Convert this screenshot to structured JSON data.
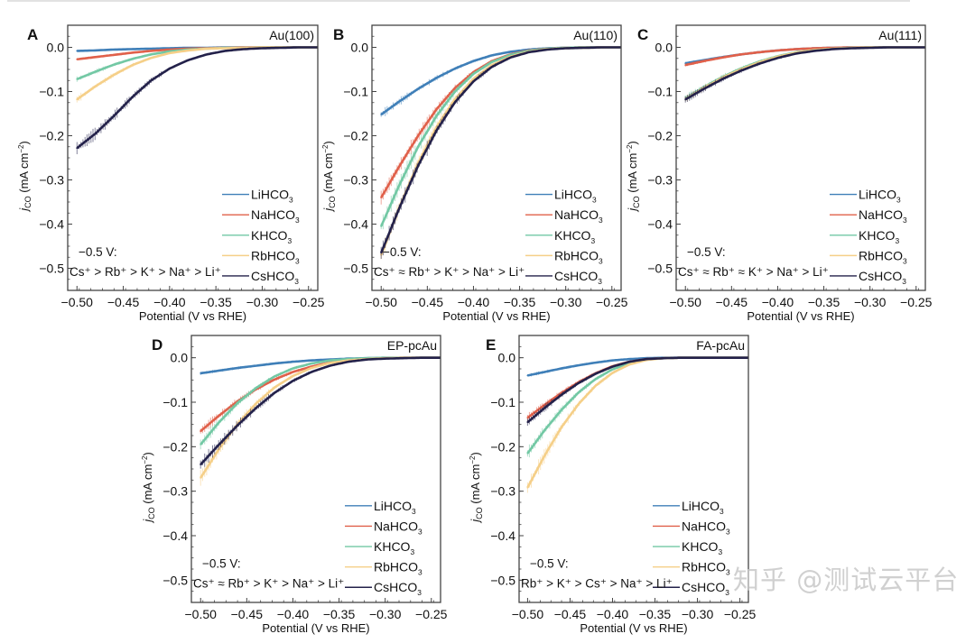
{
  "watermark": "知乎 @测试云平台",
  "colors": {
    "LiHCO3": "#3f7fb8",
    "NaHCO3": "#e0604a",
    "KHCO3": "#72c8a4",
    "RbHCO3": "#f5cf88",
    "CsHCO3": "#23214a"
  },
  "chart_data": [
    {
      "panel": "A",
      "type": "line",
      "title": "Au(100)",
      "xlabel": "Potential (V vs RHE)",
      "ylabel": "j_CO (mA cm^-2)",
      "xlim": [
        -0.51,
        -0.24
      ],
      "ylim": [
        -0.55,
        0.05
      ],
      "xticks": [
        "-0.50",
        "-0.45",
        "-0.40",
        "-0.35",
        "-0.30",
        "-0.25"
      ],
      "yticks": [
        "0.0",
        "-0.1",
        "-0.2",
        "-0.3",
        "-0.4",
        "-0.5"
      ],
      "legend_position": "bottom-right",
      "annotation": [
        "−0.5 V:",
        "Cs⁺ > Rb⁺ > K⁺ > Na⁺ > Li⁺"
      ],
      "x": [
        -0.5,
        -0.48,
        -0.46,
        -0.44,
        -0.42,
        -0.4,
        -0.38,
        -0.36,
        -0.34,
        -0.32,
        -0.3,
        -0.28,
        -0.26,
        -0.24
      ],
      "series": [
        {
          "name": "LiHCO3",
          "values": [
            -0.008,
            -0.007,
            -0.005,
            -0.004,
            -0.003,
            -0.002,
            -0.001,
            -0.001,
            0,
            0,
            0,
            0,
            0,
            0
          ]
        },
        {
          "name": "NaHCO3",
          "values": [
            -0.027,
            -0.022,
            -0.017,
            -0.012,
            -0.008,
            -0.005,
            -0.003,
            -0.002,
            -0.001,
            0,
            0,
            0,
            0,
            0
          ]
        },
        {
          "name": "KHCO3",
          "values": [
            -0.072,
            -0.055,
            -0.039,
            -0.026,
            -0.016,
            -0.009,
            -0.005,
            -0.003,
            -0.001,
            -0.001,
            0,
            0,
            0,
            0
          ]
        },
        {
          "name": "RbHCO3",
          "values": [
            -0.118,
            -0.088,
            -0.062,
            -0.04,
            -0.024,
            -0.013,
            -0.007,
            -0.003,
            -0.002,
            -0.001,
            0,
            0,
            0,
            0
          ]
        },
        {
          "name": "CsHCO3",
          "values": [
            -0.228,
            -0.195,
            -0.155,
            -0.112,
            -0.075,
            -0.048,
            -0.029,
            -0.016,
            -0.008,
            -0.004,
            -0.002,
            -0.001,
            0,
            0
          ]
        }
      ]
    },
    {
      "panel": "B",
      "type": "line",
      "title": "Au(110)",
      "xlabel": "Potential (V vs RHE)",
      "ylabel": "j_CO (mA cm^-2)",
      "xlim": [
        -0.51,
        -0.24
      ],
      "ylim": [
        -0.55,
        0.05
      ],
      "xticks": [
        "-0.50",
        "-0.45",
        "-0.40",
        "-0.35",
        "-0.30",
        "-0.25"
      ],
      "yticks": [
        "0.0",
        "-0.1",
        "-0.2",
        "-0.3",
        "-0.4",
        "-0.5"
      ],
      "legend_position": "bottom-right",
      "annotation": [
        "−0.5 V:",
        "Cs⁺ ≈ Rb⁺ > K⁺ > Na⁺ > Li⁺"
      ],
      "x": [
        -0.5,
        -0.48,
        -0.46,
        -0.44,
        -0.42,
        -0.4,
        -0.38,
        -0.36,
        -0.34,
        -0.32,
        -0.3,
        -0.28,
        -0.26,
        -0.24
      ],
      "series": [
        {
          "name": "LiHCO3",
          "values": [
            -0.152,
            -0.122,
            -0.094,
            -0.069,
            -0.048,
            -0.031,
            -0.018,
            -0.01,
            -0.005,
            -0.002,
            -0.001,
            0,
            0,
            0
          ]
        },
        {
          "name": "NaHCO3",
          "values": [
            -0.34,
            -0.268,
            -0.2,
            -0.14,
            -0.092,
            -0.056,
            -0.031,
            -0.016,
            -0.007,
            -0.003,
            -0.001,
            0,
            0,
            0
          ]
        },
        {
          "name": "KHCO3",
          "values": [
            -0.405,
            -0.31,
            -0.225,
            -0.155,
            -0.1,
            -0.06,
            -0.033,
            -0.017,
            -0.008,
            -0.003,
            -0.001,
            0,
            0,
            0
          ]
        },
        {
          "name": "RbHCO3",
          "values": [
            -0.47,
            -0.36,
            -0.262,
            -0.18,
            -0.117,
            -0.071,
            -0.04,
            -0.021,
            -0.01,
            -0.004,
            -0.002,
            -0.001,
            0,
            0
          ]
        },
        {
          "name": "CsHCO3",
          "values": [
            -0.465,
            -0.362,
            -0.268,
            -0.188,
            -0.124,
            -0.077,
            -0.044,
            -0.023,
            -0.011,
            -0.005,
            -0.002,
            -0.001,
            0,
            0
          ]
        }
      ]
    },
    {
      "panel": "C",
      "type": "line",
      "title": "Au(111)",
      "xlabel": "Potential (V vs RHE)",
      "ylabel": "j_CO (mA cm^-2)",
      "xlim": [
        -0.51,
        -0.24
      ],
      "ylim": [
        -0.55,
        0.05
      ],
      "xticks": [
        "-0.50",
        "-0.45",
        "-0.40",
        "-0.35",
        "-0.30",
        "-0.25"
      ],
      "yticks": [
        "0.0",
        "-0.1",
        "-0.2",
        "-0.3",
        "-0.4",
        "-0.5"
      ],
      "legend_position": "bottom-right",
      "annotation": [
        "−0.5 V:",
        "Cs⁺ ≈ Rb⁺ ≈ K⁺ > Na⁺ > Li⁺"
      ],
      "x": [
        -0.5,
        -0.48,
        -0.46,
        -0.44,
        -0.42,
        -0.4,
        -0.38,
        -0.36,
        -0.34,
        -0.32,
        -0.3,
        -0.28,
        -0.26,
        -0.24
      ],
      "series": [
        {
          "name": "LiHCO3",
          "values": [
            -0.036,
            -0.029,
            -0.022,
            -0.016,
            -0.011,
            -0.007,
            -0.004,
            -0.002,
            -0.001,
            0,
            0,
            0,
            0,
            0
          ]
        },
        {
          "name": "NaHCO3",
          "values": [
            -0.04,
            -0.031,
            -0.023,
            -0.016,
            -0.011,
            -0.007,
            -0.004,
            -0.002,
            -0.001,
            0,
            0,
            0,
            0,
            0
          ]
        },
        {
          "name": "KHCO3",
          "values": [
            -0.115,
            -0.09,
            -0.067,
            -0.048,
            -0.032,
            -0.02,
            -0.011,
            -0.006,
            -0.003,
            -0.001,
            0,
            0,
            0,
            0
          ]
        },
        {
          "name": "RbHCO3",
          "values": [
            -0.117,
            -0.092,
            -0.069,
            -0.05,
            -0.034,
            -0.021,
            -0.012,
            -0.006,
            -0.003,
            -0.001,
            0,
            0,
            0,
            0
          ]
        },
        {
          "name": "CsHCO3",
          "values": [
            -0.118,
            -0.094,
            -0.072,
            -0.053,
            -0.037,
            -0.024,
            -0.014,
            -0.008,
            -0.004,
            -0.002,
            -0.001,
            0,
            0,
            0
          ]
        }
      ]
    },
    {
      "panel": "D",
      "type": "line",
      "title": "EP-pcAu",
      "xlabel": "Potential (V vs RHE)",
      "ylabel": "j_CO (mA cm^-2)",
      "xlim": [
        -0.51,
        -0.24
      ],
      "ylim": [
        -0.55,
        0.05
      ],
      "xticks": [
        "-0.50",
        "-0.45",
        "-0.40",
        "-0.35",
        "-0.30",
        "-0.25"
      ],
      "yticks": [
        "0.0",
        "-0.1",
        "-0.2",
        "-0.3",
        "-0.4",
        "-0.5"
      ],
      "legend_position": "bottom-right",
      "annotation": [
        "−0.5 V:",
        "Cs⁺ ≈ Rb⁺ > K⁺ > Na⁺ > Li⁺"
      ],
      "x": [
        -0.5,
        -0.48,
        -0.46,
        -0.44,
        -0.42,
        -0.4,
        -0.38,
        -0.36,
        -0.34,
        -0.32,
        -0.3,
        -0.28,
        -0.26,
        -0.24
      ],
      "series": [
        {
          "name": "LiHCO3",
          "values": [
            -0.035,
            -0.029,
            -0.023,
            -0.018,
            -0.013,
            -0.009,
            -0.006,
            -0.004,
            -0.002,
            -0.001,
            0,
            0,
            0,
            0
          ]
        },
        {
          "name": "NaHCO3",
          "values": [
            -0.165,
            -0.13,
            -0.098,
            -0.071,
            -0.049,
            -0.032,
            -0.02,
            -0.011,
            -0.006,
            -0.003,
            -0.001,
            0,
            0,
            0
          ]
        },
        {
          "name": "KHCO3",
          "values": [
            -0.195,
            -0.145,
            -0.102,
            -0.068,
            -0.042,
            -0.024,
            -0.013,
            -0.006,
            -0.003,
            -0.001,
            0,
            0,
            0,
            0
          ]
        },
        {
          "name": "RbHCO3",
          "values": [
            -0.27,
            -0.205,
            -0.149,
            -0.103,
            -0.067,
            -0.041,
            -0.023,
            -0.012,
            -0.006,
            -0.003,
            -0.001,
            0,
            0,
            0
          ]
        },
        {
          "name": "CsHCO3",
          "values": [
            -0.24,
            -0.195,
            -0.152,
            -0.113,
            -0.079,
            -0.052,
            -0.032,
            -0.018,
            -0.009,
            -0.004,
            -0.002,
            -0.001,
            0,
            0
          ]
        }
      ]
    },
    {
      "panel": "E",
      "type": "line",
      "title": "FA-pcAu",
      "xlabel": "Potential (V vs RHE)",
      "ylabel": "j_CO (mA cm^-2)",
      "xlim": [
        -0.51,
        -0.24
      ],
      "ylim": [
        -0.55,
        0.05
      ],
      "xticks": [
        "-0.50",
        "-0.45",
        "-0.40",
        "-0.35",
        "-0.30",
        "-0.25"
      ],
      "yticks": [
        "0.0",
        "-0.1",
        "-0.2",
        "-0.3",
        "-0.4",
        "-0.5"
      ],
      "legend_position": "bottom-right",
      "annotation": [
        "−0.5 V:",
        "Rb⁺ > K⁺ > Cs⁺ > Na⁺ > Li⁺"
      ],
      "x": [
        -0.5,
        -0.48,
        -0.46,
        -0.44,
        -0.42,
        -0.4,
        -0.38,
        -0.36,
        -0.34,
        -0.32,
        -0.3,
        -0.28,
        -0.26,
        -0.24
      ],
      "series": [
        {
          "name": "LiHCO3",
          "values": [
            -0.04,
            -0.032,
            -0.024,
            -0.017,
            -0.011,
            -0.006,
            -0.003,
            -0.001,
            0,
            0,
            0,
            0,
            0,
            0
          ]
        },
        {
          "name": "NaHCO3",
          "values": [
            -0.135,
            -0.106,
            -0.079,
            -0.055,
            -0.035,
            -0.019,
            -0.009,
            -0.003,
            -0.001,
            0,
            0,
            0,
            0,
            0
          ]
        },
        {
          "name": "KHCO3",
          "values": [
            -0.215,
            -0.163,
            -0.117,
            -0.078,
            -0.048,
            -0.026,
            -0.012,
            -0.004,
            -0.001,
            0,
            0,
            0,
            0,
            0
          ]
        },
        {
          "name": "RbHCO3",
          "values": [
            -0.292,
            -0.22,
            -0.156,
            -0.104,
            -0.063,
            -0.034,
            -0.015,
            -0.005,
            -0.001,
            0,
            0,
            0,
            0,
            0
          ]
        },
        {
          "name": "CsHCO3",
          "values": [
            -0.145,
            -0.113,
            -0.083,
            -0.057,
            -0.036,
            -0.02,
            -0.009,
            -0.003,
            -0.001,
            0,
            0,
            0,
            0,
            0
          ]
        }
      ]
    }
  ]
}
